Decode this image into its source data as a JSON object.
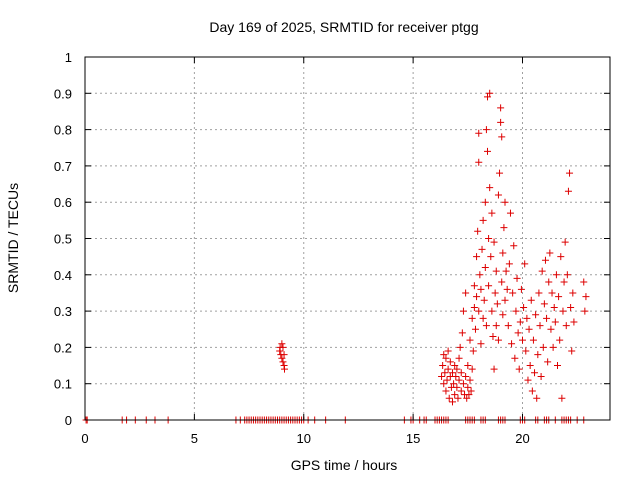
{
  "chart_data": {
    "type": "scatter",
    "title": "Day 169 of 2025, SRMTID for receiver ptgg",
    "xlabel": "GPS time / hours",
    "ylabel": "SRMTID / TECUs",
    "xlim": [
      0,
      24
    ],
    "ylim": [
      0,
      1
    ],
    "xticks": [
      0,
      5,
      10,
      15,
      20
    ],
    "xtick_labels": [
      "0",
      "5",
      "10",
      "15",
      "20"
    ],
    "yticks": [
      0,
      0.1,
      0.2,
      0.3,
      0.4,
      0.5,
      0.6,
      0.7,
      0.8,
      0.9,
      1
    ],
    "ytick_labels": [
      "0",
      "0.1",
      "0.2",
      "0.3",
      "0.4",
      "0.5",
      "0.6",
      "0.7",
      "0.8",
      "0.9",
      "1"
    ],
    "grid": true,
    "marker": "+",
    "marker_color": "#dd0000",
    "series": [
      {
        "name": "SRMTID",
        "points": [
          [
            0.05,
            0
          ],
          [
            0.1,
            0
          ],
          [
            1.7,
            0
          ],
          [
            1.9,
            0
          ],
          [
            2.3,
            0
          ],
          [
            2.8,
            0
          ],
          [
            3.2,
            0
          ],
          [
            3.8,
            0
          ],
          [
            6.9,
            0
          ],
          [
            7.1,
            0
          ],
          [
            7.3,
            0
          ],
          [
            7.4,
            0
          ],
          [
            7.5,
            0
          ],
          [
            7.6,
            0
          ],
          [
            7.7,
            0
          ],
          [
            7.8,
            0
          ],
          [
            7.9,
            0
          ],
          [
            8.0,
            0
          ],
          [
            8.1,
            0
          ],
          [
            8.2,
            0
          ],
          [
            8.3,
            0
          ],
          [
            8.4,
            0
          ],
          [
            8.5,
            0
          ],
          [
            8.6,
            0
          ],
          [
            8.7,
            0
          ],
          [
            8.8,
            0
          ],
          [
            8.9,
            0
          ],
          [
            9.0,
            0
          ],
          [
            9.1,
            0
          ],
          [
            9.2,
            0
          ],
          [
            9.3,
            0
          ],
          [
            9.4,
            0
          ],
          [
            9.5,
            0
          ],
          [
            9.6,
            0
          ],
          [
            9.7,
            0
          ],
          [
            9.8,
            0
          ],
          [
            9.9,
            0
          ],
          [
            10.0,
            0
          ],
          [
            10.2,
            0
          ],
          [
            10.5,
            0
          ],
          [
            11.0,
            0
          ],
          [
            11.9,
            0
          ],
          [
            14.6,
            0
          ],
          [
            14.9,
            0
          ],
          [
            15.0,
            0
          ],
          [
            15.3,
            0
          ],
          [
            15.5,
            0
          ],
          [
            15.6,
            0
          ],
          [
            16.0,
            0
          ],
          [
            16.1,
            0
          ],
          [
            16.2,
            0
          ],
          [
            16.3,
            0
          ],
          [
            16.4,
            0
          ],
          [
            16.5,
            0
          ],
          [
            16.6,
            0
          ],
          [
            17.4,
            0
          ],
          [
            17.5,
            0
          ],
          [
            17.6,
            0
          ],
          [
            17.7,
            0
          ],
          [
            17.8,
            0
          ],
          [
            18.1,
            0
          ],
          [
            18.2,
            0
          ],
          [
            18.3,
            0
          ],
          [
            18.9,
            0
          ],
          [
            19.0,
            0
          ],
          [
            19.1,
            0
          ],
          [
            19.2,
            0
          ],
          [
            19.9,
            0
          ],
          [
            20.0,
            0
          ],
          [
            20.1,
            0
          ],
          [
            20.6,
            0
          ],
          [
            20.7,
            0
          ],
          [
            21.0,
            0
          ],
          [
            21.1,
            0
          ],
          [
            21.2,
            0
          ],
          [
            21.5,
            0
          ],
          [
            21.8,
            0
          ],
          [
            21.9,
            0
          ],
          [
            22.0,
            0
          ],
          [
            22.1,
            0
          ],
          [
            22.2,
            0
          ],
          [
            22.5,
            0
          ],
          [
            22.8,
            0
          ],
          [
            8.9,
            0.19
          ],
          [
            8.95,
            0.18
          ],
          [
            9.0,
            0.21
          ],
          [
            9.0,
            0.17
          ],
          [
            9.05,
            0.2
          ],
          [
            9.05,
            0.16
          ],
          [
            9.1,
            0.15
          ],
          [
            9.1,
            0.18
          ],
          [
            9.12,
            0.14
          ],
          [
            8.92,
            0.2
          ],
          [
            16.3,
            0.12
          ],
          [
            16.35,
            0.15
          ],
          [
            16.4,
            0.18
          ],
          [
            16.4,
            0.1
          ],
          [
            16.45,
            0.13
          ],
          [
            16.5,
            0.17
          ],
          [
            16.5,
            0.08
          ],
          [
            16.55,
            0.11
          ],
          [
            16.6,
            0.14
          ],
          [
            16.6,
            0.19
          ],
          [
            16.65,
            0.06
          ],
          [
            16.7,
            0.12
          ],
          [
            16.7,
            0.16
          ],
          [
            16.75,
            0.09
          ],
          [
            16.8,
            0.13
          ],
          [
            16.8,
            0.05
          ],
          [
            16.85,
            0.1
          ],
          [
            16.9,
            0.15
          ],
          [
            16.9,
            0.07
          ],
          [
            16.95,
            0.12
          ],
          [
            17.0,
            0.09
          ],
          [
            17.0,
            0.14
          ],
          [
            17.05,
            0.06
          ],
          [
            17.1,
            0.11
          ],
          [
            17.1,
            0.17
          ],
          [
            17.15,
            0.2
          ],
          [
            17.2,
            0.08
          ],
          [
            17.2,
            0.13
          ],
          [
            17.25,
            0.24
          ],
          [
            17.3,
            0.1
          ],
          [
            17.3,
            0.3
          ],
          [
            17.35,
            0.07
          ],
          [
            17.4,
            0.12
          ],
          [
            17.4,
            0.35
          ],
          [
            17.45,
            0.06
          ],
          [
            17.5,
            0.09
          ],
          [
            17.5,
            0.15
          ],
          [
            17.55,
            0.07
          ],
          [
            17.6,
            0.11
          ],
          [
            17.6,
            0.22
          ],
          [
            17.65,
            0.08
          ],
          [
            17.7,
            0.28
          ],
          [
            17.7,
            0.14
          ],
          [
            17.75,
            0.19
          ],
          [
            17.8,
            0.31
          ],
          [
            17.8,
            0.37
          ],
          [
            17.85,
            0.25
          ],
          [
            17.9,
            0.34
          ],
          [
            17.9,
            0.45
          ],
          [
            17.95,
            0.52
          ],
          [
            18.0,
            0.71
          ],
          [
            18.0,
            0.3
          ],
          [
            18.0,
            0.79
          ],
          [
            18.05,
            0.4
          ],
          [
            18.1,
            0.36
          ],
          [
            18.1,
            0.21
          ],
          [
            18.15,
            0.47
          ],
          [
            18.2,
            0.28
          ],
          [
            18.2,
            0.55
          ],
          [
            18.25,
            0.33
          ],
          [
            18.3,
            0.6
          ],
          [
            18.3,
            0.42
          ],
          [
            18.35,
            0.8
          ],
          [
            18.35,
            0.26
          ],
          [
            18.4,
            0.89
          ],
          [
            18.4,
            0.74
          ],
          [
            18.45,
            0.5
          ],
          [
            18.45,
            0.37
          ],
          [
            18.5,
            0.9
          ],
          [
            18.5,
            0.64
          ],
          [
            18.55,
            0.45
          ],
          [
            18.6,
            0.3
          ],
          [
            18.6,
            0.57
          ],
          [
            18.65,
            0.23
          ],
          [
            18.7,
            0.14
          ],
          [
            18.7,
            0.49
          ],
          [
            18.75,
            0.35
          ],
          [
            18.8,
            0.26
          ],
          [
            18.8,
            0.41
          ],
          [
            18.85,
            0.32
          ],
          [
            18.9,
            0.62
          ],
          [
            18.9,
            0.22
          ],
          [
            18.95,
            0.68
          ],
          [
            19.0,
            0.86
          ],
          [
            19.0,
            0.82
          ],
          [
            19.05,
            0.78
          ],
          [
            19.05,
            0.38
          ],
          [
            19.1,
            0.46
          ],
          [
            19.1,
            0.29
          ],
          [
            19.15,
            0.53
          ],
          [
            19.2,
            0.33
          ],
          [
            19.2,
            0.6
          ],
          [
            19.25,
            0.41
          ],
          [
            19.3,
            0.36
          ],
          [
            19.35,
            0.26
          ],
          [
            19.4,
            0.43
          ],
          [
            19.45,
            0.57
          ],
          [
            19.5,
            0.21
          ],
          [
            19.55,
            0.35
          ],
          [
            19.6,
            0.48
          ],
          [
            19.65,
            0.17
          ],
          [
            19.7,
            0.3
          ],
          [
            19.75,
            0.39
          ],
          [
            19.8,
            0.24
          ],
          [
            19.85,
            0.14
          ],
          [
            19.9,
            0.27
          ],
          [
            19.95,
            0.36
          ],
          [
            20.0,
            0.22
          ],
          [
            20.05,
            0.31
          ],
          [
            20.1,
            0.43
          ],
          [
            20.15,
            0.19
          ],
          [
            20.2,
            0.28
          ],
          [
            20.25,
            0.11
          ],
          [
            20.3,
            0.25
          ],
          [
            20.35,
            0.15
          ],
          [
            20.4,
            0.33
          ],
          [
            20.45,
            0.08
          ],
          [
            20.5,
            0.22
          ],
          [
            20.55,
            0.13
          ],
          [
            20.6,
            0.29
          ],
          [
            20.65,
            0.06
          ],
          [
            20.7,
            0.18
          ],
          [
            20.75,
            0.35
          ],
          [
            20.8,
            0.26
          ],
          [
            20.85,
            0.12
          ],
          [
            20.9,
            0.41
          ],
          [
            20.95,
            0.2
          ],
          [
            21.0,
            0.32
          ],
          [
            21.05,
            0.44
          ],
          [
            21.1,
            0.28
          ],
          [
            21.15,
            0.16
          ],
          [
            21.2,
            0.38
          ],
          [
            21.25,
            0.46
          ],
          [
            21.3,
            0.25
          ],
          [
            21.35,
            0.35
          ],
          [
            21.4,
            0.2
          ],
          [
            21.45,
            0.31
          ],
          [
            21.5,
            0.27
          ],
          [
            21.55,
            0.4
          ],
          [
            21.6,
            0.15
          ],
          [
            21.65,
            0.34
          ],
          [
            21.7,
            0.22
          ],
          [
            21.75,
            0.45
          ],
          [
            21.8,
            0.06
          ],
          [
            21.85,
            0.3
          ],
          [
            21.9,
            0.38
          ],
          [
            21.95,
            0.49
          ],
          [
            22.0,
            0.26
          ],
          [
            22.05,
            0.4
          ],
          [
            22.1,
            0.63
          ],
          [
            22.15,
            0.68
          ],
          [
            22.2,
            0.31
          ],
          [
            22.25,
            0.19
          ],
          [
            22.3,
            0.35
          ],
          [
            22.35,
            0.27
          ],
          [
            22.8,
            0.38
          ],
          [
            22.85,
            0.3
          ],
          [
            22.9,
            0.34
          ]
        ]
      }
    ]
  }
}
